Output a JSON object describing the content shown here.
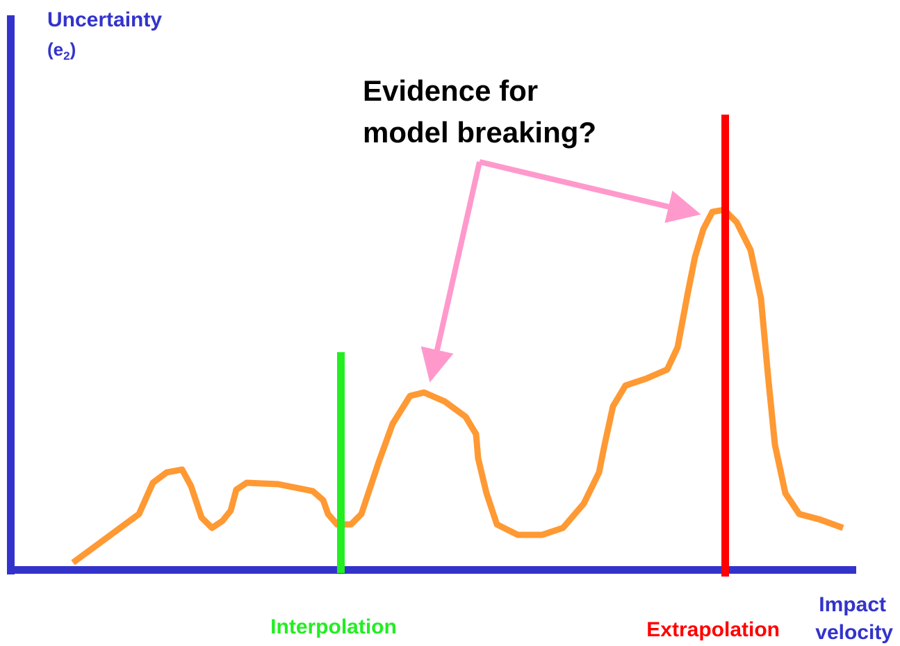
{
  "y_axis": {
    "label": "Uncertainty",
    "unit_open": "(e",
    "unit_subscript": "2",
    "unit_close": ")"
  },
  "x_axis": {
    "label_line1": "Impact",
    "label_line2": "velocity"
  },
  "annotation": {
    "line1": "Evidence for",
    "line2": "model breaking?"
  },
  "regions": {
    "interpolation": "Interpolation",
    "extrapolation": "Extrapolation"
  }
}
